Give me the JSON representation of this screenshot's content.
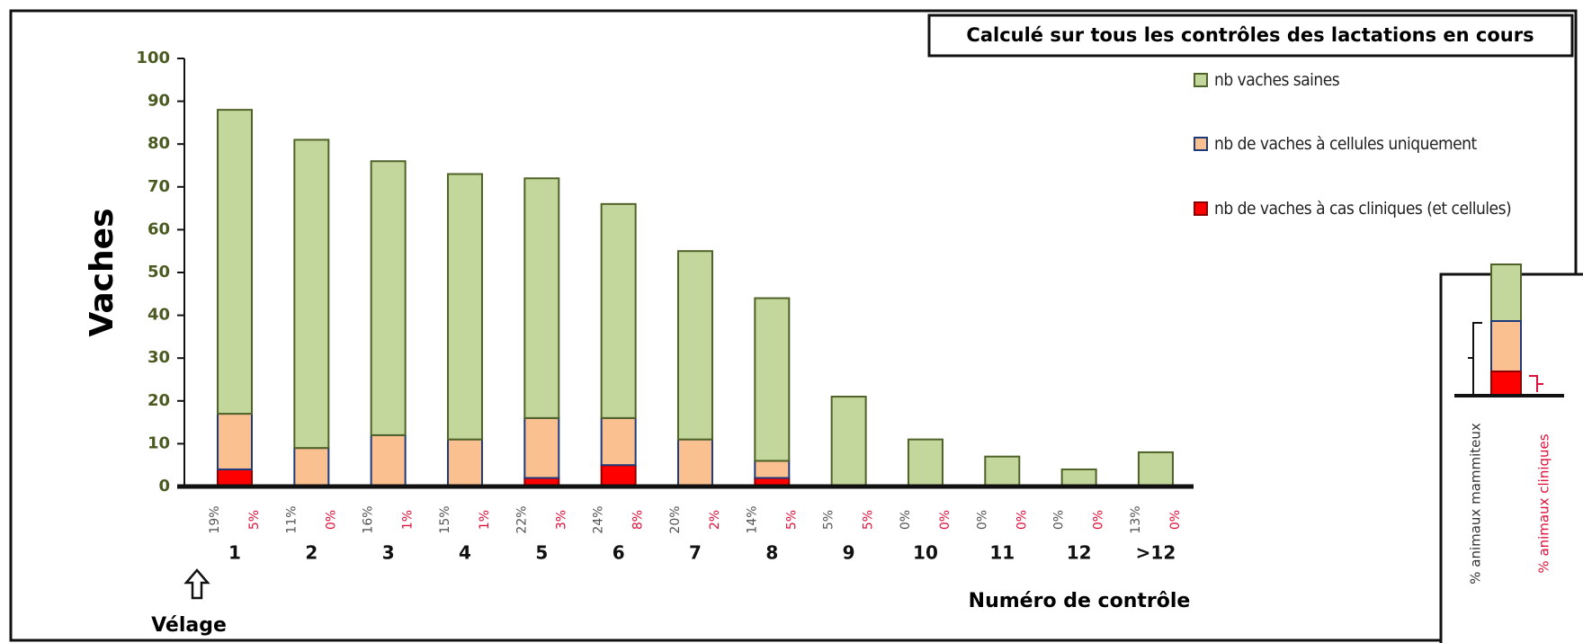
{
  "chart_data": {
    "type": "stacked_bar",
    "legend_title": "Calculé sur tous les contrôles des lactations en cours",
    "ylabel": "Vaches",
    "xlabel": "Numéro de contrôle",
    "annotation": "Vélage",
    "categories": [
      "1",
      "2",
      "3",
      "4",
      "5",
      "6",
      "7",
      "8",
      "9",
      "10",
      "11",
      "12",
      ">12"
    ],
    "series": [
      {
        "name": "nb de vaches à cas cliniques (et cellules)",
        "color": "#ff0000",
        "stroke": "#8b0000",
        "values": [
          4,
          0,
          0,
          0,
          2,
          5,
          0,
          2,
          0,
          0,
          0,
          0,
          0
        ]
      },
      {
        "name": "nb de vaches à cellules uniquement",
        "color": "#fac090",
        "stroke": "#1f3a7a",
        "values": [
          13,
          9,
          12,
          11,
          14,
          11,
          11,
          4,
          0,
          0,
          0,
          0,
          0
        ]
      },
      {
        "name": "nb vaches saines",
        "color": "#c3d69b",
        "stroke": "#4f6228",
        "values": [
          71,
          72,
          64,
          62,
          56,
          50,
          44,
          38,
          21,
          11,
          7,
          4,
          8
        ]
      }
    ],
    "pct_mammiteux": [
      "19%",
      "11%",
      "16%",
      "15%",
      "22%",
      "24%",
      "20%",
      "14%",
      "5%",
      "0%",
      "0%",
      "0%",
      "13%"
    ],
    "pct_cliniques": [
      "5%",
      "0%",
      "1%",
      "1%",
      "3%",
      "8%",
      "2%",
      "5%",
      "5%",
      "0%",
      "0%",
      "0%",
      "0%"
    ],
    "inset_labels": [
      "% animaux mammiteux",
      "% animaux cliniques"
    ],
    "ylim": [
      0,
      100
    ],
    "yticks": [
      0,
      10,
      20,
      30,
      40,
      50,
      60,
      70,
      80,
      90,
      100
    ]
  }
}
